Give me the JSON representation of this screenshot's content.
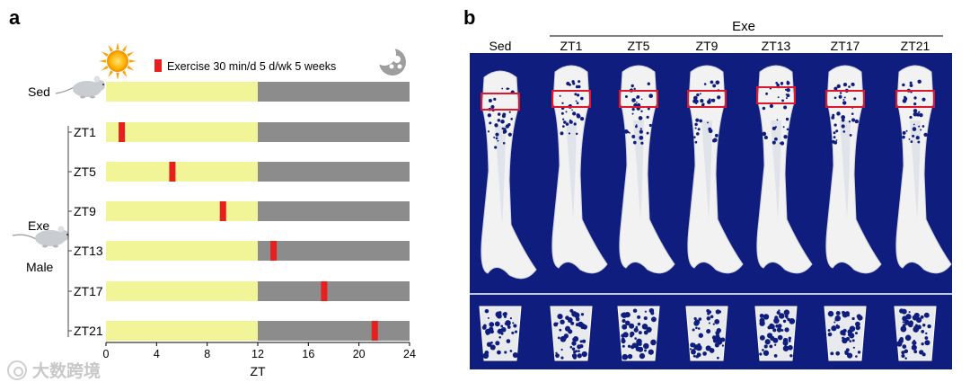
{
  "panel_a": {
    "letter": "a",
    "legend_text": "Exercise  30 min/d  5 d/wk 5 weeks",
    "sed_label": "Sed",
    "exe_label": "Exe",
    "male_label": "Male",
    "x_axis_label": "ZT",
    "x_ticks": [
      "0",
      "4",
      "8",
      "12",
      "16",
      "20",
      "24"
    ],
    "light_color": "#f1f597",
    "dark_color": "#8c8c8c",
    "exercise_color": "#e81f1f",
    "icons": [
      "sun-icon",
      "moon-icon",
      "mouse-icon"
    ]
  },
  "panel_b": {
    "letter": "b",
    "header": "Exe",
    "columns": [
      "Sed",
      "ZT1",
      "ZT5",
      "ZT9",
      "ZT13",
      "ZT17",
      "ZT21"
    ],
    "background_color": "#0f1e7e",
    "roi_color": "#e0162a"
  },
  "chart_data": {
    "type": "bar",
    "xlabel": "ZT",
    "xlim": [
      0,
      24
    ],
    "light_phase": [
      0,
      12
    ],
    "dark_phase": [
      12,
      24
    ],
    "rows": [
      {
        "label": "Sed",
        "exercise_start": null
      },
      {
        "label": "ZT1",
        "exercise_start": 1
      },
      {
        "label": "ZT5",
        "exercise_start": 5
      },
      {
        "label": "ZT9",
        "exercise_start": 9
      },
      {
        "label": "ZT13",
        "exercise_start": 13
      },
      {
        "label": "ZT17",
        "exercise_start": 17
      },
      {
        "label": "ZT21",
        "exercise_start": 21
      }
    ],
    "exercise_duration_h": 0.5
  },
  "watermark": "大数跨境"
}
